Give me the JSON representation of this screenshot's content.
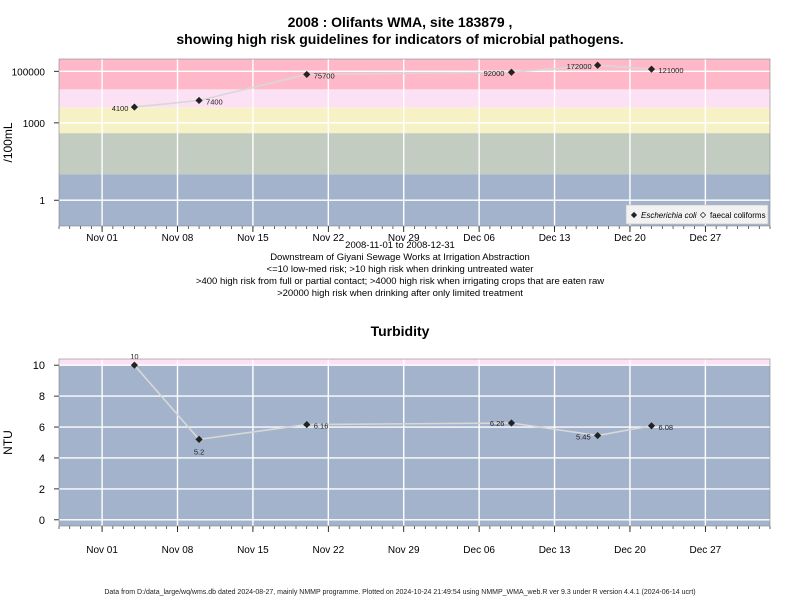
{
  "header": {
    "title_line1": "2008 : Olifants WMA, site 183879 ,",
    "title_line2": "showing high risk guidelines for indicators of microbial pathogens."
  },
  "subtitle": {
    "line1": "2008-11-01 to 2008-12-31",
    "line2": "Downstream of Giyani Sewage Works at Irrigation Abstraction",
    "line3": "<=10 low-med risk; >10 high risk when drinking untreated water",
    "line4": ">400 high risk from full or partial contact; >4000 high risk when irrigating crops that are eaten raw",
    "line5": ">20000 high risk when drinking after only limited treatment"
  },
  "footer": "Data from D:/data_large/wq/wms.db dated 2024-08-27, mainly NMMP programme. Plotted on 2024-10-24 21:49:54 using NMMP_WMA_web.R ver 9.3 under R version 4.4.1 (2024-06-14 ucrt)",
  "colors": {
    "band_low": "#a3b3cc",
    "band_10_400": "#c3ccc0",
    "band_400_4000": "#f7f2c6",
    "band_4000_20000": "#fce0f3",
    "band_high": "#ffb8c8",
    "turbidity_band": "#a3b3cc",
    "turbidity_top_band": "#fce0f3",
    "line": "#d8d8d8",
    "marker": "#222222"
  },
  "chart_data": [
    {
      "type": "scatter",
      "title": "2008 : Olifants WMA, site 183879 , showing high risk guidelines for indicators of microbial pathogens.",
      "ylabel": "/100mL",
      "yscale": "log",
      "ylim": [
        0.1,
        300000
      ],
      "yticks": [
        1,
        1000,
        100000
      ],
      "ytick_labels": [
        "1",
        "1000",
        "100000"
      ],
      "xlim": [
        "2008-10-28",
        "2009-01-02"
      ],
      "xticks": [
        "2008-11-01",
        "2008-11-08",
        "2008-11-15",
        "2008-11-22",
        "2008-11-29",
        "2008-12-06",
        "2008-12-13",
        "2008-12-20",
        "2008-12-27"
      ],
      "xtick_labels": [
        "Nov 01",
        "Nov 08",
        "Nov 15",
        "Nov 22",
        "Nov 29",
        "Dec 06",
        "Dec 13",
        "Dec 20",
        "Dec 27"
      ],
      "risk_bands": [
        {
          "from": 0.1,
          "to": 10,
          "color": "#a3b3cc"
        },
        {
          "from": 10,
          "to": 400,
          "color": "#c3ccc0"
        },
        {
          "from": 400,
          "to": 4000,
          "color": "#f7f2c6"
        },
        {
          "from": 4000,
          "to": 20000,
          "color": "#fce0f3"
        },
        {
          "from": 20000,
          "to": 300000,
          "color": "#ffb8c8"
        }
      ],
      "legend_position": "bottom-right",
      "series": [
        {
          "name": "Escherichia coli",
          "marker": "filled-diamond",
          "x": [
            "2008-11-04",
            "2008-11-10",
            "2008-11-20",
            "2008-12-09",
            "2008-12-17",
            "2008-12-22"
          ],
          "y": [
            4100,
            7400,
            75700,
            92000,
            172000,
            121000
          ],
          "labels": [
            "4100",
            "7400",
            "75700",
            "92000",
            "172000",
            "121000"
          ]
        },
        {
          "name": "faecal coliforms",
          "marker": "open-diamond",
          "x": [],
          "y": [],
          "labels": []
        }
      ],
      "grid": true
    },
    {
      "type": "scatter",
      "title": "Turbidity",
      "ylabel": "NTU",
      "ylim": [
        -0.4,
        10.4
      ],
      "yticks": [
        0,
        2,
        4,
        6,
        8,
        10
      ],
      "ytick_labels": [
        "0",
        "2",
        "4",
        "6",
        "8",
        "10"
      ],
      "xlim": [
        "2008-10-28",
        "2009-01-02"
      ],
      "xticks": [
        "2008-11-01",
        "2008-11-08",
        "2008-11-15",
        "2008-11-22",
        "2008-11-29",
        "2008-12-06",
        "2008-12-13",
        "2008-12-20",
        "2008-12-27"
      ],
      "xtick_labels": [
        "Nov 01",
        "Nov 08",
        "Nov 15",
        "Nov 22",
        "Nov 29",
        "Dec 06",
        "Dec 13",
        "Dec 20",
        "Dec 27"
      ],
      "bands": [
        {
          "from": -0.4,
          "to": 10,
          "color": "#a3b3cc"
        },
        {
          "from": 10,
          "to": 10.4,
          "color": "#fce0f3"
        }
      ],
      "series": [
        {
          "name": "",
          "marker": "filled-diamond",
          "x": [
            "2008-11-04",
            "2008-11-10",
            "2008-11-20",
            "2008-12-09",
            "2008-12-17",
            "2008-12-22"
          ],
          "y": [
            10,
            5.2,
            6.16,
            6.26,
            5.45,
            6.08
          ],
          "labels": [
            "10",
            "5.2",
            "6.16",
            "6.26",
            "5.45",
            "6.08"
          ]
        }
      ],
      "grid": true
    }
  ]
}
